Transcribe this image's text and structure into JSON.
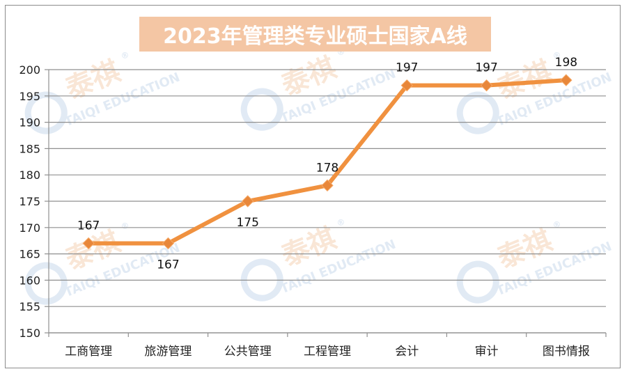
{
  "chart_data": {
    "type": "line",
    "title": "2023年管理类专业硕士国家A线",
    "categories": [
      "工商管理",
      "旅游管理",
      "公共管理",
      "工程管理",
      "会计",
      "审计",
      "图书情报"
    ],
    "series": [
      {
        "values": [
          167,
          167,
          175,
          178,
          197,
          197,
          198
        ]
      }
    ],
    "data_labels": [
      "167",
      "167",
      "175",
      "178",
      "197",
      "197",
      "198"
    ],
    "y_ticks": [
      "150",
      "155",
      "160",
      "165",
      "170",
      "175",
      "180",
      "185",
      "190",
      "195",
      "200"
    ],
    "ylim": [
      150,
      200
    ],
    "grid": true,
    "legend": "none",
    "line_color": "#f0913f",
    "marker": "diamond"
  },
  "watermark": {
    "brand_cn": "泰祺",
    "brand_en": "TAIQI EDUCATION",
    "registered": "®",
    "color": "#c9d9ec",
    "accent": "#f5d3b5"
  }
}
